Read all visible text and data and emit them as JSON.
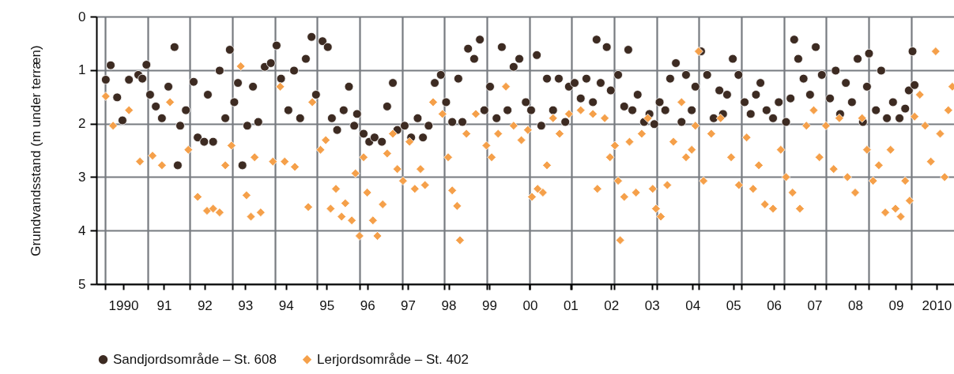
{
  "chart_data": {
    "type": "scatter",
    "ylabel": "Grundvandsstand (m under terræn)",
    "xlim": [
      1989.34,
      2010.43
    ],
    "ylim": [
      5,
      0
    ],
    "yticks": [
      0,
      1,
      2,
      3,
      4,
      5
    ],
    "xticks": [
      {
        "value": 1989.55,
        "label": null
      },
      {
        "value": 1990.6,
        "label": null
      },
      {
        "value": 1991.64,
        "label": null
      },
      {
        "value": 1992.68,
        "label": null
      },
      {
        "value": 1993.73,
        "label": null
      },
      {
        "value": 1994.77,
        "label": null
      },
      {
        "value": 1995.81,
        "label": null
      },
      {
        "value": 1996.86,
        "label": null
      },
      {
        "value": 1997.9,
        "label": null
      },
      {
        "value": 1998.94,
        "label": null
      },
      {
        "value": 1999.99,
        "label": null
      },
      {
        "value": 2001.03,
        "label": null
      },
      {
        "value": 2002.07,
        "label": null
      },
      {
        "value": 2003.12,
        "label": null
      },
      {
        "value": 2004.16,
        "label": null
      },
      {
        "value": 2005.2,
        "label": null
      },
      {
        "value": 2006.25,
        "label": null
      },
      {
        "value": 2007.29,
        "label": null
      },
      {
        "value": 2008.33,
        "label": null
      },
      {
        "value": 2009.38,
        "label": null
      },
      1990,
      {
        "value": 1991,
        "label": "91"
      },
      {
        "value": 1992,
        "label": "92"
      },
      {
        "value": 1993,
        "label": "93"
      },
      {
        "value": 1994,
        "label": "94"
      },
      {
        "value": 1995,
        "label": "95"
      },
      {
        "value": 1996,
        "label": "96"
      },
      {
        "value": 1997,
        "label": "97"
      },
      {
        "value": 1998,
        "label": "98"
      },
      {
        "value": 1999,
        "label": "99"
      },
      {
        "value": 2000,
        "label": "00"
      },
      {
        "value": 2001,
        "label": "01"
      },
      {
        "value": 2002,
        "label": "02"
      },
      {
        "value": 2003,
        "label": "03"
      },
      {
        "value": 2004,
        "label": "04"
      },
      {
        "value": 2005,
        "label": "05"
      },
      {
        "value": 2006,
        "label": "06"
      },
      {
        "value": 2007,
        "label": "07"
      },
      {
        "value": 2008,
        "label": "08"
      },
      {
        "value": 2009,
        "label": "09"
      },
      2010
    ],
    "grid": true,
    "legend": "bottom",
    "series": [
      {
        "name": "Sandjordsområde – St. 608",
        "color": "#3d2b22",
        "marker": "circle",
        "x": [
          1989.57,
          1989.69,
          1989.85,
          1989.98,
          1990.14,
          1990.37,
          1990.47,
          1990.57,
          1990.66,
          1990.8,
          1990.95,
          1991.11,
          1991.26,
          1991.34,
          1991.4,
          1991.54,
          1991.73,
          1991.83,
          1991.99,
          1992.08,
          1992.21,
          1992.37,
          1992.51,
          1992.62,
          1992.73,
          1992.82,
          1992.93,
          1993.05,
          1993.19,
          1993.32,
          1993.48,
          1993.63,
          1993.77,
          1993.88,
          1994.06,
          1994.2,
          1994.35,
          1994.49,
          1994.63,
          1994.74,
          1994.9,
          1995.03,
          1995.13,
          1995.26,
          1995.42,
          1995.55,
          1995.68,
          1995.75,
          1995.91,
          1996.05,
          1996.18,
          1996.36,
          1996.49,
          1996.63,
          1996.74,
          1996.92,
          1997.08,
          1997.24,
          1997.37,
          1997.51,
          1997.66,
          1997.81,
          1997.94,
          1998.09,
          1998.24,
          1998.34,
          1998.48,
          1998.63,
          1998.77,
          1998.88,
          1999.02,
          1999.18,
          1999.31,
          1999.45,
          1999.6,
          1999.74,
          1999.9,
          2000.03,
          2000.17,
          2000.28,
          2000.42,
          2000.57,
          2000.71,
          2000.87,
          2000.96,
          2001.1,
          2001.25,
          2001.39,
          2001.55,
          2001.64,
          2001.74,
          2001.89,
          2001.99,
          2002.17,
          2002.32,
          2002.42,
          2002.52,
          2002.65,
          2002.81,
          2002.94,
          2003.06,
          2003.19,
          2003.33,
          2003.45,
          2003.59,
          2003.73,
          2003.84,
          2003.98,
          2004.07,
          2004.21,
          2004.36,
          2004.52,
          2004.66,
          2004.75,
          2004.85,
          2004.99,
          2005.13,
          2005.28,
          2005.43,
          2005.56,
          2005.67,
          2005.82,
          2005.98,
          2006.12,
          2006.3,
          2006.41,
          2006.5,
          2006.6,
          2006.73,
          2006.89,
          2007.03,
          2007.18,
          2007.38,
          2007.52,
          2007.63,
          2007.77,
          2007.92,
          2008.06,
          2008.19,
          2008.29,
          2008.34,
          2008.51,
          2008.64,
          2008.78,
          2008.93,
          2009.09,
          2009.23,
          2009.32,
          2009.41,
          2009.46
        ],
        "values": [
          1.18,
          0.91,
          1.51,
          1.94,
          1.18,
          1.09,
          1.16,
          0.9,
          1.46,
          1.68,
          1.9,
          1.31,
          0.57,
          2.78,
          2.04,
          1.75,
          1.22,
          2.26,
          2.34,
          1.46,
          2.34,
          1.01,
          1.9,
          0.62,
          1.6,
          1.24,
          2.78,
          2.04,
          1.31,
          1.97,
          0.94,
          0.87,
          0.54,
          1.16,
          1.75,
          1.01,
          1.9,
          0.79,
          0.38,
          1.46,
          0.46,
          0.57,
          1.9,
          2.12,
          1.75,
          1.31,
          2.04,
          1.82,
          2.19,
          2.34,
          2.26,
          2.34,
          1.68,
          1.24,
          2.12,
          2.04,
          2.26,
          1.9,
          2.26,
          2.04,
          1.24,
          1.09,
          1.6,
          1.97,
          1.16,
          1.97,
          0.6,
          0.79,
          0.43,
          1.75,
          1.31,
          1.9,
          0.57,
          1.75,
          0.94,
          0.79,
          1.6,
          1.75,
          0.72,
          2.04,
          1.16,
          1.75,
          1.16,
          1.97,
          1.31,
          1.24,
          1.53,
          1.16,
          1.6,
          0.43,
          1.24,
          0.57,
          1.38,
          1.09,
          1.68,
          0.62,
          1.75,
          1.46,
          1.97,
          1.82,
          2.01,
          1.6,
          1.75,
          1.16,
          0.87,
          1.97,
          1.09,
          1.75,
          1.31,
          0.65,
          1.09,
          1.9,
          1.38,
          1.82,
          1.46,
          0.79,
          1.09,
          1.6,
          1.82,
          1.46,
          1.24,
          1.75,
          1.9,
          1.6,
          1.97,
          1.53,
          0.43,
          0.79,
          1.16,
          1.46,
          0.57,
          1.09,
          1.53,
          1.01,
          1.82,
          1.24,
          1.6,
          0.79,
          1.97,
          1.31,
          0.69,
          1.75,
          1.01,
          1.9,
          1.6,
          1.9,
          1.72,
          1.38,
          0.65,
          1.28
        ]
      },
      {
        "name": "Lerjordsområde – St. 402",
        "color": "#f5a04a",
        "marker": "diamond",
        "x": [
          1989.57,
          1989.75,
          1990.14,
          1990.41,
          1990.72,
          1990.95,
          1991.15,
          1991.6,
          1991.83,
          1992.06,
          1992.21,
          1992.37,
          1992.51,
          1992.66,
          1992.89,
          1993.03,
          1993.14,
          1993.23,
          1993.38,
          1993.68,
          1993.86,
          1993.97,
          1994.22,
          1994.55,
          1994.65,
          1994.85,
          1994.98,
          1995.1,
          1995.23,
          1995.37,
          1995.46,
          1995.62,
          1995.71,
          1995.81,
          1995.91,
          1996,
          1996.14,
          1996.25,
          1996.38,
          1996.49,
          1996.63,
          1996.74,
          1996.88,
          1997.04,
          1997.17,
          1997.31,
          1997.42,
          1997.62,
          1997.85,
          1997.99,
          1998.09,
          1998.21,
          1998.28,
          1998.44,
          1998.67,
          1998.93,
          1999.06,
          1999.22,
          1999.41,
          1999.6,
          1999.79,
          1999.95,
          2000.05,
          2000.19,
          2000.32,
          2000.42,
          2000.57,
          2000.73,
          2000.96,
          2001.25,
          2001.55,
          2001.66,
          2001.84,
          2001.97,
          2002.09,
          2002.17,
          2002.22,
          2002.32,
          2002.45,
          2002.61,
          2002.75,
          2002.9,
          2003.02,
          2003.1,
          2003.22,
          2003.38,
          2003.53,
          2003.73,
          2003.84,
          2003.98,
          2004.07,
          2004.15,
          2004.27,
          2004.46,
          2004.69,
          2004.95,
          2005.14,
          2005.33,
          2005.49,
          2005.63,
          2005.78,
          2005.98,
          2006.17,
          2006.3,
          2006.46,
          2006.64,
          2006.8,
          2006.98,
          2007.12,
          2007.28,
          2007.47,
          2007.61,
          2007.81,
          2008,
          2008.17,
          2008.29,
          2008.44,
          2008.58,
          2008.74,
          2008.87,
          2008.99,
          2009.12,
          2009.23,
          2009.34,
          2009.46,
          2009.59,
          2009.72,
          2009.86,
          2009.98,
          2010.09,
          2010.2,
          2010.29,
          2010.39
        ],
        "values": [
          1.49,
          2.04,
          1.75,
          2.71,
          2.6,
          2.78,
          1.6,
          2.49,
          3.37,
          3.63,
          3.59,
          3.66,
          2.78,
          2.41,
          0.93,
          3.34,
          3.74,
          2.63,
          3.66,
          2.71,
          1.31,
          2.71,
          2.81,
          3.56,
          1.6,
          2.49,
          2.31,
          3.59,
          3.22,
          3.74,
          3.49,
          3.81,
          2.93,
          4.1,
          2.63,
          3.29,
          3.81,
          4.1,
          3.51,
          2.56,
          2.19,
          2.85,
          3.07,
          2.34,
          3.22,
          2.85,
          3.15,
          1.6,
          1.82,
          2.63,
          3.25,
          3.54,
          4.18,
          2.19,
          1.82,
          2.41,
          2.63,
          2.19,
          1.31,
          2.04,
          2.31,
          2.12,
          3.37,
          3.22,
          3.29,
          2.78,
          1.9,
          2.19,
          1.82,
          1.75,
          1.82,
          3.22,
          1.9,
          2.63,
          2.41,
          3.07,
          4.18,
          3.37,
          2.34,
          3.29,
          2.19,
          1.9,
          3.22,
          3.59,
          3.74,
          3.15,
          2.34,
          1.6,
          2.63,
          2.49,
          2.04,
          0.65,
          3.07,
          2.19,
          1.9,
          2.63,
          3.15,
          2.26,
          3.22,
          2.78,
          3.51,
          3.59,
          2.49,
          3.0,
          3.29,
          3.59,
          2.04,
          1.75,
          2.63,
          2.04,
          2.85,
          1.9,
          3.0,
          3.29,
          1.9,
          2.49,
          3.07,
          2.78,
          3.66,
          2.49,
          3.59,
          3.74,
          3.07,
          3.44,
          1.87,
          1.46,
          2.04,
          2.71,
          0.65,
          2.19,
          3.0,
          1.75,
          1.31
        ]
      }
    ]
  }
}
